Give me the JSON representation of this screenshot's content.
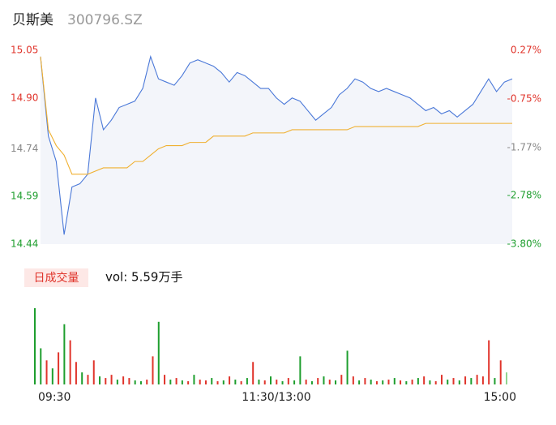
{
  "header": {
    "name": "贝斯美",
    "code": "300796.SZ"
  },
  "chart_data": [
    {
      "type": "line",
      "xlim": [
        0,
        240
      ],
      "x": [
        0,
        4,
        8,
        12,
        16,
        20,
        24,
        28,
        32,
        36,
        40,
        44,
        48,
        52,
        56,
        60,
        64,
        68,
        72,
        76,
        80,
        84,
        88,
        92,
        96,
        100,
        104,
        108,
        112,
        116,
        120,
        124,
        128,
        132,
        136,
        140,
        144,
        148,
        152,
        156,
        160,
        164,
        168,
        172,
        176,
        180,
        184,
        188,
        192,
        196,
        200,
        204,
        208,
        212,
        216,
        220,
        224,
        228,
        232,
        236,
        240
      ],
      "series": [
        {
          "color": "#4a78d8",
          "values": [
            15.03,
            14.78,
            14.7,
            14.47,
            14.62,
            14.63,
            14.66,
            14.9,
            14.8,
            14.83,
            14.87,
            14.88,
            14.89,
            14.93,
            15.03,
            14.96,
            14.95,
            14.94,
            14.97,
            15.01,
            15.02,
            15.01,
            15.0,
            14.98,
            14.95,
            14.98,
            14.97,
            14.95,
            14.93,
            14.93,
            14.9,
            14.88,
            14.9,
            14.89,
            14.86,
            14.83,
            14.85,
            14.87,
            14.91,
            14.93,
            14.96,
            14.95,
            14.93,
            14.92,
            14.93,
            14.92,
            14.91,
            14.9,
            14.88,
            14.86,
            14.87,
            14.85,
            14.86,
            14.84,
            14.86,
            14.88,
            14.92,
            14.96,
            14.92,
            14.95,
            14.96
          ]
        },
        {
          "color": "#f0b030",
          "values": [
            15.03,
            14.8,
            14.75,
            14.72,
            14.66,
            14.66,
            14.66,
            14.67,
            14.68,
            14.68,
            14.68,
            14.68,
            14.7,
            14.7,
            14.72,
            14.74,
            14.75,
            14.75,
            14.75,
            14.76,
            14.76,
            14.76,
            14.78,
            14.78,
            14.78,
            14.78,
            14.78,
            14.79,
            14.79,
            14.79,
            14.79,
            14.79,
            14.8,
            14.8,
            14.8,
            14.8,
            14.8,
            14.8,
            14.8,
            14.8,
            14.81,
            14.81,
            14.81,
            14.81,
            14.81,
            14.81,
            14.81,
            14.81,
            14.81,
            14.82,
            14.82,
            14.82,
            14.82,
            14.82,
            14.82,
            14.82,
            14.82,
            14.82,
            14.82,
            14.82,
            14.82
          ]
        }
      ],
      "ylim": [
        14.44,
        15.05
      ],
      "yticks": [
        15.05,
        {
          "value": 14.9,
          "label": "14.90"
        },
        14.74,
        14.59,
        14.44
      ],
      "ytick_colors": [
        "#e0342b",
        "#e0342b",
        "#888888",
        "#1e9e2e",
        "#1e9e2e"
      ],
      "y2lim": [
        -3.8,
        0.27
      ],
      "y2ticks": [
        {
          "value": 0.27,
          "label": "0.27%"
        },
        {
          "value": -0.75,
          "label": "-0.75%"
        },
        {
          "value": -1.77,
          "label": "-1.77%"
        },
        {
          "value": -2.78,
          "label": "-2.78%"
        },
        {
          "value": -3.8,
          "label": "-3.80%"
        }
      ],
      "y2tick_colors": [
        "#e0342b",
        "#e0342b",
        "#888888",
        "#1e9e2e",
        "#1e9e2e"
      ],
      "fill": "#f3f5fa"
    },
    {
      "type": "bar",
      "title": "日成交量",
      "subtitle": "vol: 5.59万手",
      "xlim": [
        0,
        240
      ],
      "xticks": [
        {
          "value": 0,
          "label": "09:30"
        },
        {
          "value": 120,
          "label": "11:30/13:00"
        },
        {
          "value": 240,
          "label": "15:00"
        }
      ],
      "x": [
        0,
        3,
        6,
        9,
        12,
        15,
        18,
        21,
        24,
        27,
        30,
        33,
        36,
        39,
        42,
        45,
        48,
        51,
        54,
        57,
        60,
        63,
        66,
        69,
        72,
        75,
        78,
        81,
        84,
        87,
        90,
        93,
        96,
        99,
        102,
        105,
        108,
        111,
        114,
        117,
        120,
        123,
        126,
        129,
        132,
        135,
        138,
        141,
        144,
        147,
        150,
        153,
        156,
        159,
        162,
        165,
        168,
        171,
        174,
        177,
        180,
        183,
        186,
        189,
        192,
        195,
        198,
        201,
        204,
        207,
        210,
        213,
        216,
        219,
        222,
        225,
        228,
        231,
        234,
        237,
        240
      ],
      "values": [
        95,
        45,
        30,
        20,
        40,
        75,
        55,
        28,
        15,
        12,
        30,
        10,
        8,
        12,
        6,
        10,
        8,
        5,
        4,
        6,
        35,
        78,
        12,
        6,
        8,
        5,
        4,
        12,
        6,
        5,
        8,
        4,
        5,
        10,
        6,
        4,
        8,
        28,
        6,
        5,
        10,
        6,
        4,
        8,
        5,
        35,
        6,
        4,
        8,
        10,
        6,
        5,
        12,
        42,
        10,
        5,
        8,
        6,
        4,
        5,
        6,
        8,
        5,
        4,
        6,
        8,
        10,
        5,
        4,
        12,
        6,
        8,
        5,
        10,
        8,
        12,
        10,
        55,
        8,
        30,
        15
      ],
      "colors": [
        "#1e9e2e",
        "#1e9e2e",
        "#e0342b",
        "#1e9e2e",
        "#e0342b",
        "#1e9e2e",
        "#e0342b",
        "#e0342b",
        "#1e9e2e",
        "#e0342b",
        "#e0342b",
        "#1e9e2e",
        "#e0342b",
        "#e0342b",
        "#1e9e2e",
        "#e0342b",
        "#e0342b",
        "#1e9e2e",
        "#1e9e2e",
        "#e0342b",
        "#e0342b",
        "#1e9e2e",
        "#e0342b",
        "#1e9e2e",
        "#e0342b",
        "#1e9e2e",
        "#e0342b",
        "#1e9e2e",
        "#e0342b",
        "#e0342b",
        "#1e9e2e",
        "#e0342b",
        "#1e9e2e",
        "#e0342b",
        "#1e9e2e",
        "#e0342b",
        "#1e9e2e",
        "#e0342b",
        "#1e9e2e",
        "#e0342b",
        "#1e9e2e",
        "#e0342b",
        "#1e9e2e",
        "#e0342b",
        "#1e9e2e",
        "#1e9e2e",
        "#e0342b",
        "#1e9e2e",
        "#e0342b",
        "#1e9e2e",
        "#e0342b",
        "#1e9e2e",
        "#e0342b",
        "#1e9e2e",
        "#e0342b",
        "#1e9e2e",
        "#e0342b",
        "#1e9e2e",
        "#e0342b",
        "#1e9e2e",
        "#e0342b",
        "#1e9e2e",
        "#e0342b",
        "#1e9e2e",
        "#e0342b",
        "#1e9e2e",
        "#e0342b",
        "#1e9e2e",
        "#e0342b",
        "#e0342b",
        "#1e9e2e",
        "#e0342b",
        "#1e9e2e",
        "#e0342b",
        "#1e9e2e",
        "#e0342b",
        "#e0342b",
        "#e0342b",
        "#1e9e2e",
        "#e0342b",
        "#8fd48f"
      ],
      "ylim": [
        0,
        100
      ]
    }
  ]
}
